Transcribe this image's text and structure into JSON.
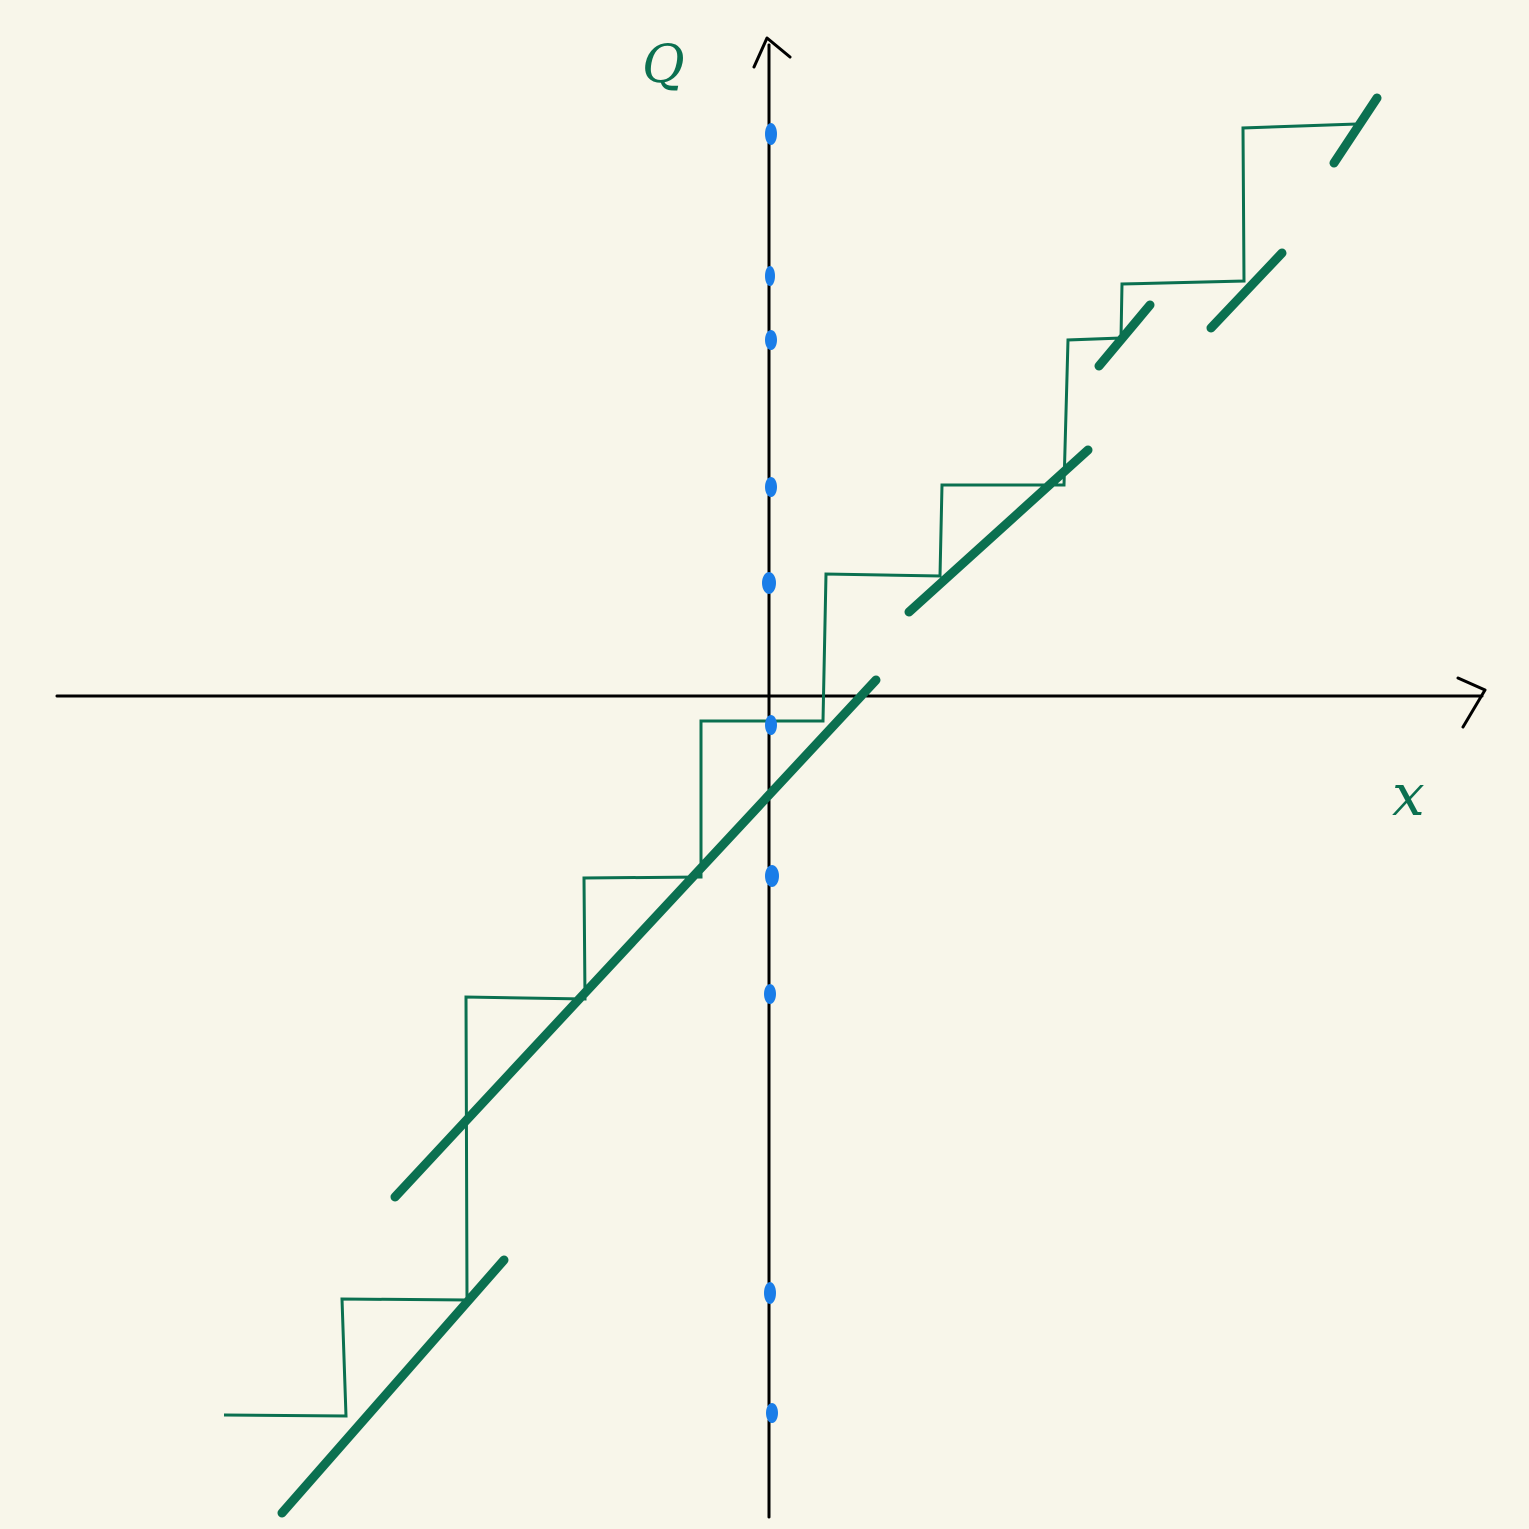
{
  "labels": {
    "y_axis": "Q",
    "x_axis": "x"
  },
  "colors": {
    "background": "#f8f6ea",
    "axis": "#000000",
    "ink_green": "#0b7050",
    "dot_blue": "#1a7de8"
  },
  "icons": {
    "y_arrow": "arrow-up-icon",
    "x_arrow": "arrow-right-icon"
  }
}
